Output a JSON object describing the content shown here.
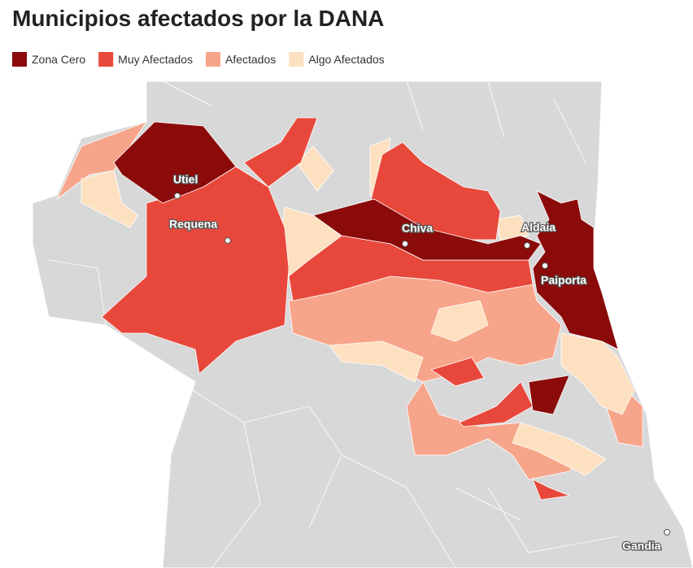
{
  "title": "Municipios afectados por la DANA",
  "legend": [
    {
      "name": "Zona Cero",
      "color": "#8b0a0a"
    },
    {
      "name": "Muy Afectados",
      "color": "#e8483b"
    },
    {
      "name": "Afectados",
      "color": "#f7a58a"
    },
    {
      "name": "Algo Afectados",
      "color": "#fde0c0"
    }
  ],
  "places": [
    {
      "label": "Utiel"
    },
    {
      "label": "Requena"
    },
    {
      "label": "Chiva"
    },
    {
      "label": "Aldaia"
    },
    {
      "label": "Paiporta"
    },
    {
      "label": "Gandia"
    }
  ]
}
